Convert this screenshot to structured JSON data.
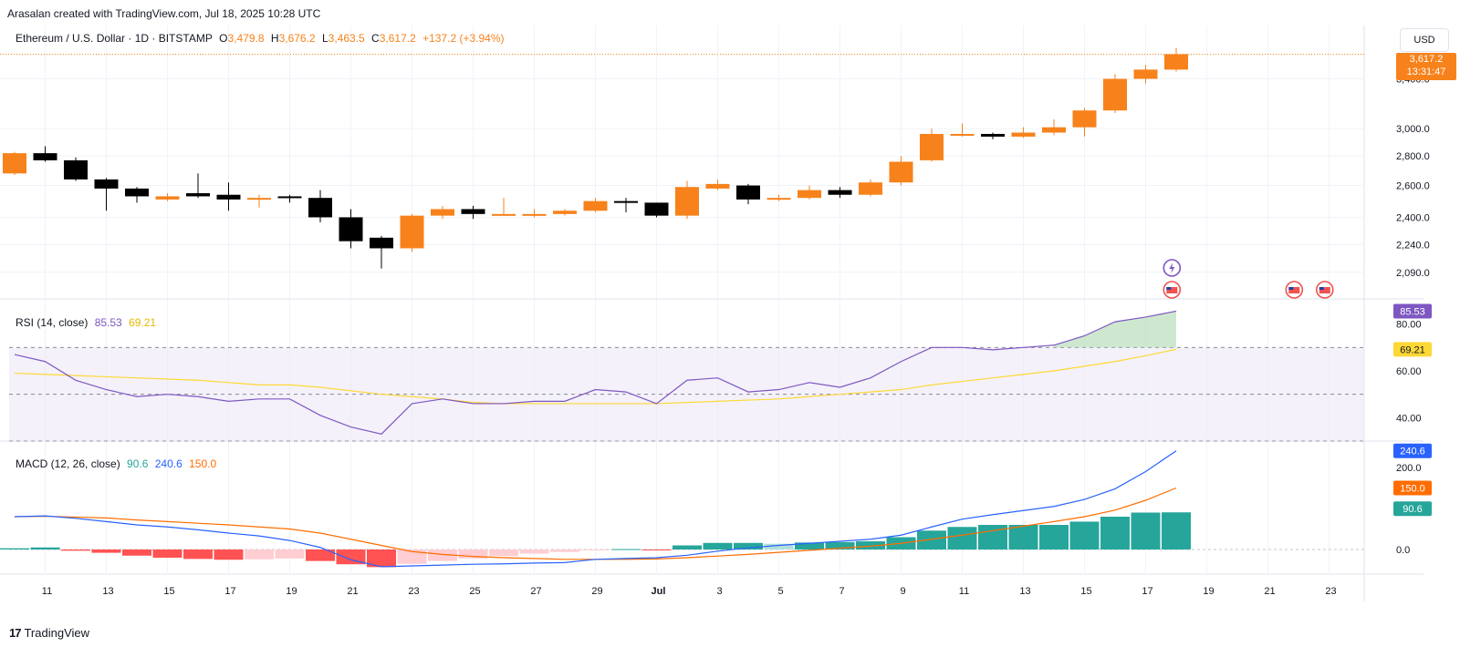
{
  "header": {
    "credit": "Arasalan created with TradingView.com, Jul 18, 2025 10:28 UTC"
  },
  "legend": {
    "symbol": "Ethereum / U.S. Dollar · 1D · BITSTAMP",
    "o_label": "O",
    "o_value": "3,479.8",
    "h_label": "H",
    "h_value": "3,676.2",
    "l_label": "L",
    "l_value": "3,463.5",
    "c_label": "C",
    "c_value": "3,617.2",
    "change": "+137.2 (+3.94%)"
  },
  "currency": "USD",
  "price_badge": {
    "price": "3,617.2",
    "countdown": "13:31:47"
  },
  "rsi_legend": {
    "name": "RSI (14, close)",
    "rsi": "85.53",
    "ma": "69.21"
  },
  "macd_legend": {
    "name": "MACD (12, 26, close)",
    "hist": "90.6",
    "macd": "240.6",
    "signal": "150.0"
  },
  "footer": {
    "brand": "TradingView"
  },
  "colors": {
    "up": "#f7821b",
    "down": "#000000",
    "rsi_line": "#7e57c2",
    "rsi_ma": "#fdd835",
    "rsi_band": "#ede7f6",
    "macd_line": "#2962ff",
    "signal_line": "#ff6d00",
    "hist_up_strong": "#26a69a",
    "hist_up_weak": "#b2dfdb",
    "hist_down_strong": "#ff5252",
    "hist_down_weak": "#ffcdd2"
  },
  "chart_data": [
    {
      "type": "candlestick",
      "title": "Ethereum / U.S. Dollar · 1D · BITSTAMP",
      "x_tick_labels": [
        "11",
        "13",
        "15",
        "17",
        "19",
        "21",
        "23",
        "25",
        "27",
        "29",
        "Jul",
        "3",
        "5",
        "7",
        "9",
        "11",
        "13",
        "15",
        "17",
        "19",
        "21",
        "23"
      ],
      "y_ticks": [
        2090,
        2240,
        2400,
        2600,
        2800,
        3000,
        3400
      ],
      "y_tick_labels": [
        "2,090.0",
        "2,240.0",
        "2,400.0",
        "2,600.0",
        "2,800.0",
        "3,000.0",
        "3,400.0"
      ],
      "y_scale": "log",
      "ylim": [
        2000,
        3800
      ],
      "grid": true,
      "candles": [
        {
          "date": "Jun 10",
          "o": 2680,
          "h": 2830,
          "l": 2670,
          "c": 2820
        },
        {
          "date": "Jun 11",
          "o": 2820,
          "h": 2870,
          "l": 2760,
          "c": 2770
        },
        {
          "date": "Jun 12",
          "o": 2770,
          "h": 2790,
          "l": 2630,
          "c": 2640
        },
        {
          "date": "Jun 13",
          "o": 2640,
          "h": 2650,
          "l": 2440,
          "c": 2580
        },
        {
          "date": "Jun 14",
          "o": 2580,
          "h": 2590,
          "l": 2490,
          "c": 2530
        },
        {
          "date": "Jun 15",
          "o": 2510,
          "h": 2550,
          "l": 2500,
          "c": 2530
        },
        {
          "date": "Jun 16",
          "o": 2550,
          "h": 2680,
          "l": 2520,
          "c": 2530
        },
        {
          "date": "Jun 17",
          "o": 2540,
          "h": 2620,
          "l": 2440,
          "c": 2510
        },
        {
          "date": "Jun 18",
          "o": 2510,
          "h": 2540,
          "l": 2460,
          "c": 2520
        },
        {
          "date": "Jun 19",
          "o": 2530,
          "h": 2540,
          "l": 2490,
          "c": 2520
        },
        {
          "date": "Jun 20",
          "o": 2520,
          "h": 2570,
          "l": 2370,
          "c": 2400
        },
        {
          "date": "Jun 21",
          "o": 2400,
          "h": 2450,
          "l": 2220,
          "c": 2260
        },
        {
          "date": "Jun 22",
          "o": 2280,
          "h": 2290,
          "l": 2110,
          "c": 2220
        },
        {
          "date": "Jun 23",
          "o": 2220,
          "h": 2420,
          "l": 2200,
          "c": 2410
        },
        {
          "date": "Jun 24",
          "o": 2410,
          "h": 2470,
          "l": 2390,
          "c": 2450
        },
        {
          "date": "Jun 25",
          "o": 2450,
          "h": 2470,
          "l": 2390,
          "c": 2420
        },
        {
          "date": "Jun 26",
          "o": 2420,
          "h": 2520,
          "l": 2410,
          "c": 2420
        },
        {
          "date": "Jun 27",
          "o": 2420,
          "h": 2450,
          "l": 2400,
          "c": 2420
        },
        {
          "date": "Jun 28",
          "o": 2420,
          "h": 2450,
          "l": 2410,
          "c": 2440
        },
        {
          "date": "Jun 29",
          "o": 2440,
          "h": 2520,
          "l": 2430,
          "c": 2500
        },
        {
          "date": "Jun 30",
          "o": 2500,
          "h": 2520,
          "l": 2430,
          "c": 2490
        },
        {
          "date": "Jul 1",
          "o": 2490,
          "h": 2490,
          "l": 2400,
          "c": 2410
        },
        {
          "date": "Jul 2",
          "o": 2410,
          "h": 2630,
          "l": 2390,
          "c": 2590
        },
        {
          "date": "Jul 3",
          "o": 2580,
          "h": 2640,
          "l": 2570,
          "c": 2610
        },
        {
          "date": "Jul 4",
          "o": 2600,
          "h": 2610,
          "l": 2480,
          "c": 2510
        },
        {
          "date": "Jul 5",
          "o": 2510,
          "h": 2540,
          "l": 2500,
          "c": 2520
        },
        {
          "date": "Jul 6",
          "o": 2520,
          "h": 2600,
          "l": 2510,
          "c": 2570
        },
        {
          "date": "Jul 7",
          "o": 2570,
          "h": 2590,
          "l": 2520,
          "c": 2540
        },
        {
          "date": "Jul 8",
          "o": 2540,
          "h": 2640,
          "l": 2530,
          "c": 2620
        },
        {
          "date": "Jul 9",
          "o": 2620,
          "h": 2800,
          "l": 2600,
          "c": 2760
        },
        {
          "date": "Jul 10",
          "o": 2770,
          "h": 3000,
          "l": 2760,
          "c": 2960
        },
        {
          "date": "Jul 11",
          "o": 2950,
          "h": 3040,
          "l": 2940,
          "c": 2960
        },
        {
          "date": "Jul 12",
          "o": 2960,
          "h": 2970,
          "l": 2920,
          "c": 2940
        },
        {
          "date": "Jul 13",
          "o": 2940,
          "h": 3010,
          "l": 2930,
          "c": 2970
        },
        {
          "date": "Jul 14",
          "o": 2970,
          "h": 3070,
          "l": 2950,
          "c": 3010
        },
        {
          "date": "Jul 15",
          "o": 3010,
          "h": 3160,
          "l": 2940,
          "c": 3140
        },
        {
          "date": "Jul 16",
          "o": 3140,
          "h": 3440,
          "l": 3120,
          "c": 3400
        },
        {
          "date": "Jul 17",
          "o": 3400,
          "h": 3520,
          "l": 3360,
          "c": 3480
        },
        {
          "date": "Jul 18",
          "o": 3479.8,
          "h": 3676.2,
          "l": 3463.5,
          "c": 3617.2
        }
      ],
      "last_price": 3617.2
    },
    {
      "type": "line",
      "title": "RSI (14, close)",
      "y_ticks": [
        40,
        60,
        80
      ],
      "y_tick_labels": [
        "40.00",
        "60.00",
        "80.00"
      ],
      "ylim": [
        30,
        90
      ],
      "bands": {
        "upper": 70,
        "middle": 50,
        "lower": 30
      },
      "series": [
        {
          "name": "RSI",
          "values": [
            67,
            64,
            56,
            52,
            49,
            50,
            49,
            47,
            48,
            48,
            41,
            36,
            33,
            46,
            48,
            46,
            46,
            47,
            47,
            52,
            51,
            46,
            56,
            57,
            51,
            52,
            55,
            53,
            57,
            64,
            70,
            70,
            69,
            70,
            71,
            75,
            81,
            83,
            85.53
          ]
        },
        {
          "name": "MA",
          "values": [
            59,
            58.5,
            58,
            57.5,
            57,
            56.5,
            56,
            55,
            54,
            54,
            53,
            51.5,
            50,
            49,
            48,
            46.5,
            46,
            46,
            46,
            46,
            46,
            46,
            46.5,
            47,
            47.5,
            48,
            49,
            50,
            51,
            52,
            54,
            55.5,
            57,
            58.5,
            60,
            62,
            64,
            66.5,
            69.21
          ]
        }
      ]
    },
    {
      "type": "bar",
      "title": "MACD (12, 26, close)",
      "y_ticks": [
        0,
        200
      ],
      "y_tick_labels": [
        "0.0",
        "200.0"
      ],
      "ylim": [
        -60,
        260
      ],
      "series": [
        {
          "name": "Histogram",
          "values": [
            3,
            5,
            -3,
            -8,
            -15,
            -20,
            -23,
            -25,
            -24,
            -22,
            -28,
            -36,
            -43,
            -35,
            -28,
            -22,
            -16,
            -10,
            -6,
            -2,
            1,
            -2,
            10,
            16,
            16,
            14,
            17,
            18,
            20,
            30,
            46,
            55,
            60,
            60,
            60,
            68,
            80,
            90,
            90.6
          ]
        },
        {
          "name": "MACD",
          "values": [
            80,
            82,
            76,
            68,
            60,
            55,
            48,
            40,
            33,
            22,
            5,
            -25,
            -42,
            -40,
            -38,
            -36,
            -35,
            -33,
            -32,
            -24,
            -22,
            -20,
            -14,
            -4,
            4,
            10,
            15,
            20,
            25,
            35,
            55,
            74,
            85,
            95,
            105,
            122,
            148,
            190,
            240.6
          ]
        },
        {
          "name": "Signal",
          "values": [
            80,
            81,
            79,
            77,
            72,
            68,
            64,
            60,
            55,
            50,
            40,
            25,
            10,
            -5,
            -12,
            -17,
            -20,
            -22,
            -24,
            -24,
            -24,
            -23,
            -20,
            -16,
            -12,
            -7,
            -2,
            3,
            8,
            15,
            25,
            35,
            46,
            57,
            68,
            80,
            96,
            120,
            150.0
          ]
        }
      ]
    }
  ]
}
